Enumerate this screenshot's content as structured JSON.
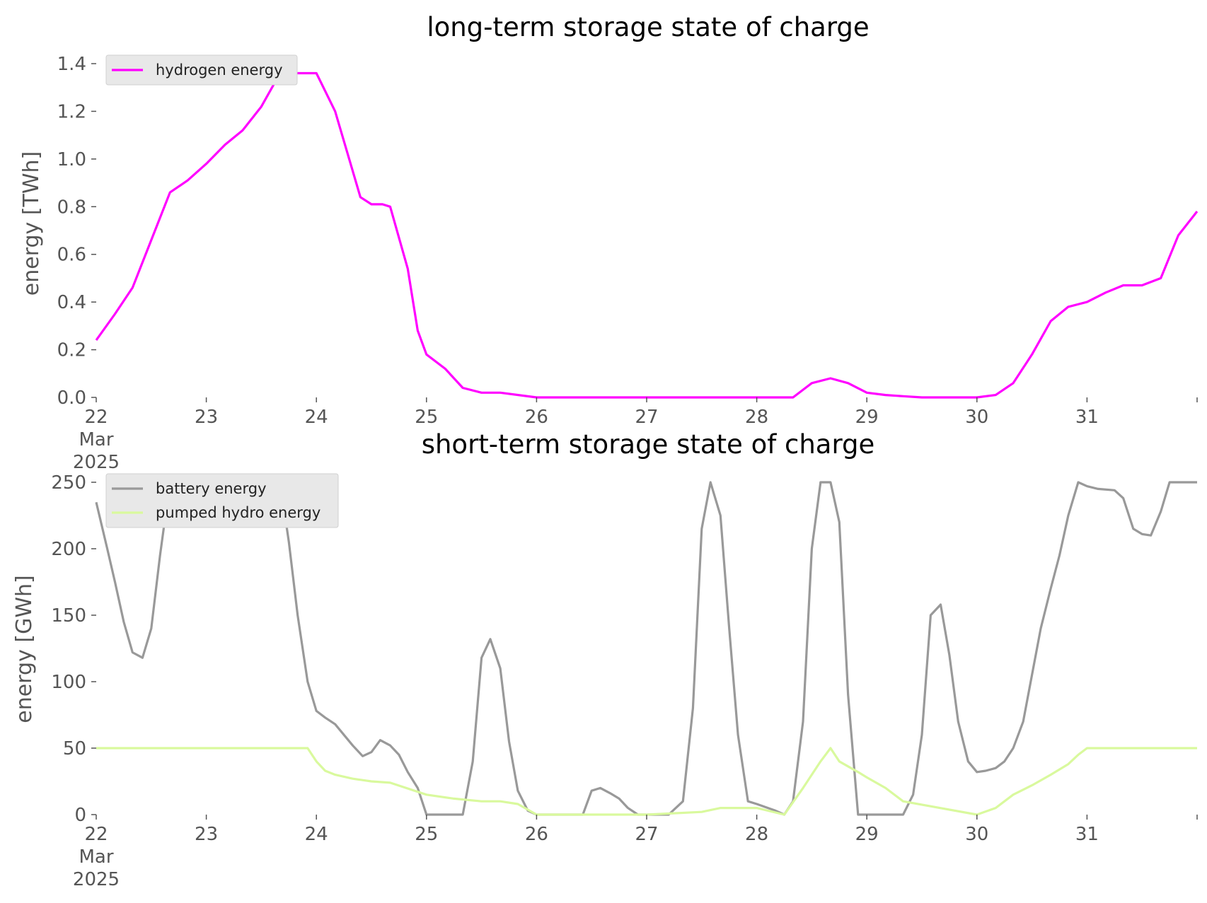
{
  "chart_data": [
    {
      "type": "line",
      "title": "long-term storage state of charge",
      "ylabel": "energy [TWh]",
      "ylim": [
        0,
        1.4
      ],
      "yticks": [
        "0.0",
        "0.2",
        "0.4",
        "0.6",
        "0.8",
        "1.0",
        "1.2",
        "1.4"
      ],
      "xlim": [
        22,
        32
      ],
      "xticks": [
        {
          "x": 22,
          "label": "22",
          "sub": [
            "Mar",
            "2025"
          ]
        },
        {
          "x": 23,
          "label": "23"
        },
        {
          "x": 24,
          "label": "24"
        },
        {
          "x": 25,
          "label": "25"
        },
        {
          "x": 26,
          "label": "26"
        },
        {
          "x": 27,
          "label": "27"
        },
        {
          "x": 28,
          "label": "28"
        },
        {
          "x": 29,
          "label": "29"
        },
        {
          "x": 30,
          "label": "30"
        },
        {
          "x": 31,
          "label": "31"
        }
      ],
      "grid": false,
      "legend": "top-left",
      "series": [
        {
          "name": "hydrogen energy",
          "color": "#ff00ff",
          "x": [
            22,
            22.17,
            22.33,
            22.5,
            22.67,
            22.83,
            23,
            23.17,
            23.33,
            23.5,
            23.67,
            24,
            24.17,
            24.33,
            24.4,
            24.5,
            24.6,
            24.67,
            24.83,
            24.92,
            25,
            25.17,
            25.33,
            25.5,
            25.67,
            26,
            26.5,
            27,
            27.5,
            28,
            28.33,
            28.5,
            28.67,
            28.83,
            29,
            29.17,
            29.33,
            29.5,
            30,
            30.17,
            30.33,
            30.5,
            30.67,
            30.83,
            31,
            31.17,
            31.33,
            31.5,
            31.67,
            31.83,
            32
          ],
          "y": [
            0.24,
            0.35,
            0.46,
            0.66,
            0.86,
            0.91,
            0.98,
            1.06,
            1.12,
            1.22,
            1.36,
            1.36,
            1.2,
            0.95,
            0.84,
            0.81,
            0.81,
            0.8,
            0.54,
            0.28,
            0.18,
            0.12,
            0.04,
            0.02,
            0.02,
            0.0,
            0.0,
            0.0,
            0.0,
            0.0,
            0.0,
            0.06,
            0.08,
            0.06,
            0.02,
            0.01,
            0.005,
            0.0,
            0.0,
            0.01,
            0.06,
            0.18,
            0.32,
            0.38,
            0.4,
            0.44,
            0.47,
            0.47,
            0.5,
            0.68,
            0.78
          ]
        }
      ]
    },
    {
      "type": "line",
      "title": "short-term storage state of charge",
      "ylabel": "energy [GWh]",
      "ylim": [
        0,
        250
      ],
      "yticks": [
        "0",
        "50",
        "100",
        "150",
        "200",
        "250"
      ],
      "xlim": [
        22,
        32
      ],
      "xticks": [
        {
          "x": 22,
          "label": "22",
          "sub": [
            "Mar",
            "2025"
          ]
        },
        {
          "x": 23,
          "label": "23"
        },
        {
          "x": 24,
          "label": "24"
        },
        {
          "x": 25,
          "label": "25"
        },
        {
          "x": 26,
          "label": "26"
        },
        {
          "x": 27,
          "label": "27"
        },
        {
          "x": 28,
          "label": "28"
        },
        {
          "x": 29,
          "label": "29"
        },
        {
          "x": 30,
          "label": "30"
        },
        {
          "x": 31,
          "label": "31"
        }
      ],
      "grid": false,
      "legend": "top-left",
      "series": [
        {
          "name": "battery energy",
          "color": "#999999",
          "x": [
            22,
            22.1,
            22.17,
            22.25,
            22.33,
            22.42,
            22.5,
            22.58,
            22.67,
            22.75,
            22.83,
            23,
            23.5,
            23.67,
            23.75,
            23.83,
            23.92,
            24,
            24.08,
            24.17,
            24.33,
            24.42,
            24.5,
            24.58,
            24.67,
            24.75,
            24.83,
            24.92,
            25,
            25.08,
            25.17,
            25.33,
            25.42,
            25.5,
            25.58,
            25.67,
            25.75,
            25.83,
            25.92,
            26,
            26.25,
            26.42,
            26.5,
            26.58,
            26.67,
            26.75,
            26.83,
            26.92,
            27,
            27.2,
            27.33,
            27.42,
            27.5,
            27.58,
            27.67,
            27.75,
            27.83,
            27.92,
            28,
            28.17,
            28.25,
            28.33,
            28.42,
            28.5,
            28.58,
            28.67,
            28.75,
            28.83,
            28.92,
            29,
            29.17,
            29.33,
            29.42,
            29.5,
            29.58,
            29.67,
            29.75,
            29.83,
            29.92,
            30,
            30.08,
            30.17,
            30.25,
            30.33,
            30.42,
            30.5,
            30.58,
            30.67,
            30.75,
            30.83,
            30.92,
            31,
            31.1,
            31.25,
            31.33,
            31.42,
            31.5,
            31.58,
            31.67,
            31.75,
            31.83,
            32
          ],
          "y": [
            235,
            200,
            175,
            145,
            122,
            118,
            140,
            195,
            250,
            250,
            250,
            250,
            250,
            250,
            205,
            150,
            100,
            78,
            73,
            68,
            52,
            44,
            47,
            56,
            52,
            45,
            32,
            20,
            0,
            0,
            0,
            0,
            40,
            118,
            132,
            110,
            55,
            18,
            3,
            0,
            0,
            0,
            18,
            20,
            16,
            12,
            5,
            0,
            0,
            0,
            10,
            80,
            215,
            250,
            225,
            140,
            60,
            10,
            8,
            3,
            0,
            10,
            70,
            200,
            250,
            250,
            220,
            90,
            0,
            0,
            0,
            0,
            15,
            60,
            150,
            158,
            120,
            70,
            40,
            32,
            33,
            35,
            40,
            50,
            70,
            105,
            140,
            170,
            195,
            225,
            250,
            247,
            245,
            244,
            238,
            215,
            211,
            210,
            228,
            250,
            250,
            250
          ]
        },
        {
          "name": "pumped hydro energy",
          "color": "#d9f99d",
          "x": [
            22,
            23.92,
            24,
            24.08,
            24.17,
            24.33,
            24.5,
            24.67,
            25,
            25.25,
            25.5,
            25.67,
            25.83,
            26,
            27,
            27.5,
            27.67,
            28,
            28.25,
            28.42,
            28.58,
            28.67,
            28.75,
            28.92,
            29,
            29.17,
            29.33,
            30,
            30.17,
            30.25,
            30.33,
            30.5,
            30.67,
            30.83,
            30.92,
            31,
            32
          ],
          "y": [
            50,
            50,
            40,
            33,
            30,
            27,
            25,
            24,
            15,
            12,
            10,
            10,
            8,
            0,
            0,
            2,
            5,
            5,
            0,
            20,
            40,
            50,
            40,
            32,
            28,
            20,
            10,
            0,
            5,
            10,
            15,
            22,
            30,
            38,
            45,
            50,
            50
          ]
        }
      ]
    }
  ]
}
